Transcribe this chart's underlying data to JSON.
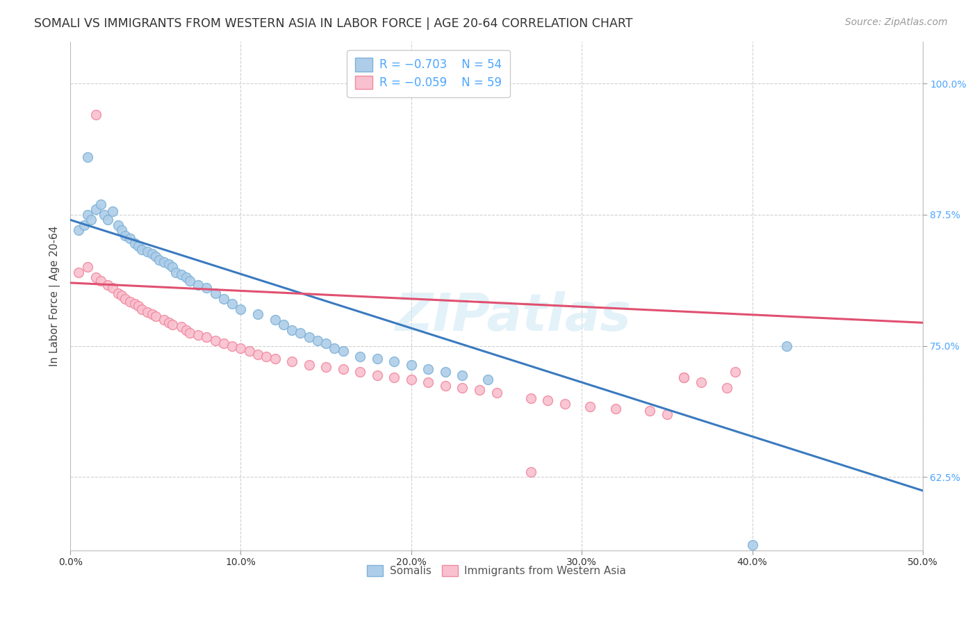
{
  "title": "SOMALI VS IMMIGRANTS FROM WESTERN ASIA IN LABOR FORCE | AGE 20-64 CORRELATION CHART",
  "source": "Source: ZipAtlas.com",
  "ylabel_label": "In Labor Force | Age 20-64",
  "xlim": [
    0.0,
    0.5
  ],
  "ylim": [
    0.555,
    1.04
  ],
  "legend_labels": [
    "Somalis",
    "Immigrants from Western Asia"
  ],
  "legend_r": [
    "R = −0.703",
    "R = −0.059"
  ],
  "legend_n": [
    "N = 54",
    "N = 59"
  ],
  "blue_scatter_face": "#aecde8",
  "blue_scatter_edge": "#7fb3d9",
  "pink_scatter_face": "#f9c0cf",
  "pink_scatter_edge": "#f08aa0",
  "blue_line_color": "#3a7abf",
  "pink_line_color": "#e05070",
  "watermark": "ZIPatlas",
  "somali_x": [
    0.005,
    0.008,
    0.01,
    0.012,
    0.015,
    0.018,
    0.02,
    0.022,
    0.025,
    0.028,
    0.03,
    0.032,
    0.035,
    0.038,
    0.04,
    0.042,
    0.045,
    0.048,
    0.05,
    0.052,
    0.055,
    0.058,
    0.06,
    0.062,
    0.065,
    0.068,
    0.07,
    0.075,
    0.08,
    0.085,
    0.09,
    0.095,
    0.1,
    0.11,
    0.12,
    0.125,
    0.13,
    0.135,
    0.14,
    0.145,
    0.15,
    0.155,
    0.16,
    0.17,
    0.18,
    0.19,
    0.2,
    0.21,
    0.22,
    0.23,
    0.245,
    0.42,
    0.4,
    0.01
  ],
  "somali_y": [
    0.86,
    0.865,
    0.875,
    0.87,
    0.88,
    0.885,
    0.875,
    0.87,
    0.878,
    0.865,
    0.86,
    0.855,
    0.852,
    0.848,
    0.845,
    0.842,
    0.84,
    0.838,
    0.835,
    0.832,
    0.83,
    0.828,
    0.825,
    0.82,
    0.818,
    0.815,
    0.812,
    0.808,
    0.805,
    0.8,
    0.795,
    0.79,
    0.785,
    0.78,
    0.775,
    0.77,
    0.765,
    0.762,
    0.758,
    0.755,
    0.752,
    0.748,
    0.745,
    0.74,
    0.738,
    0.735,
    0.732,
    0.728,
    0.725,
    0.722,
    0.718,
    0.75,
    0.56,
    0.93
  ],
  "western_x": [
    0.005,
    0.01,
    0.015,
    0.018,
    0.022,
    0.025,
    0.028,
    0.03,
    0.032,
    0.035,
    0.038,
    0.04,
    0.042,
    0.045,
    0.048,
    0.05,
    0.055,
    0.058,
    0.06,
    0.065,
    0.068,
    0.07,
    0.075,
    0.08,
    0.085,
    0.09,
    0.095,
    0.1,
    0.105,
    0.11,
    0.115,
    0.12,
    0.13,
    0.14,
    0.15,
    0.16,
    0.17,
    0.18,
    0.19,
    0.2,
    0.21,
    0.22,
    0.23,
    0.24,
    0.25,
    0.27,
    0.28,
    0.29,
    0.305,
    0.32,
    0.34,
    0.35,
    0.36,
    0.37,
    0.385,
    0.27,
    0.36,
    0.39,
    0.015
  ],
  "western_y": [
    0.82,
    0.825,
    0.815,
    0.812,
    0.808,
    0.805,
    0.8,
    0.798,
    0.795,
    0.792,
    0.79,
    0.788,
    0.785,
    0.782,
    0.78,
    0.778,
    0.775,
    0.772,
    0.77,
    0.768,
    0.765,
    0.762,
    0.76,
    0.758,
    0.755,
    0.752,
    0.75,
    0.748,
    0.745,
    0.742,
    0.74,
    0.738,
    0.735,
    0.732,
    0.73,
    0.728,
    0.725,
    0.722,
    0.72,
    0.718,
    0.715,
    0.712,
    0.71,
    0.708,
    0.705,
    0.7,
    0.698,
    0.695,
    0.692,
    0.69,
    0.688,
    0.685,
    0.72,
    0.715,
    0.71,
    0.63,
    0.72,
    0.725,
    0.97
  ],
  "blue_trend_x0": 0.0,
  "blue_trend_x1": 0.5,
  "blue_trend_y0": 0.87,
  "blue_trend_y1": 0.612,
  "pink_trend_x0": 0.0,
  "pink_trend_x1": 0.5,
  "pink_trend_y0": 0.81,
  "pink_trend_y1": 0.772,
  "grid_color": "#d0d0d0",
  "background_color": "#ffffff",
  "title_fontsize": 12.5,
  "axis_label_fontsize": 11,
  "tick_fontsize": 10,
  "legend_fontsize": 12,
  "source_fontsize": 10,
  "marker_size": 100
}
